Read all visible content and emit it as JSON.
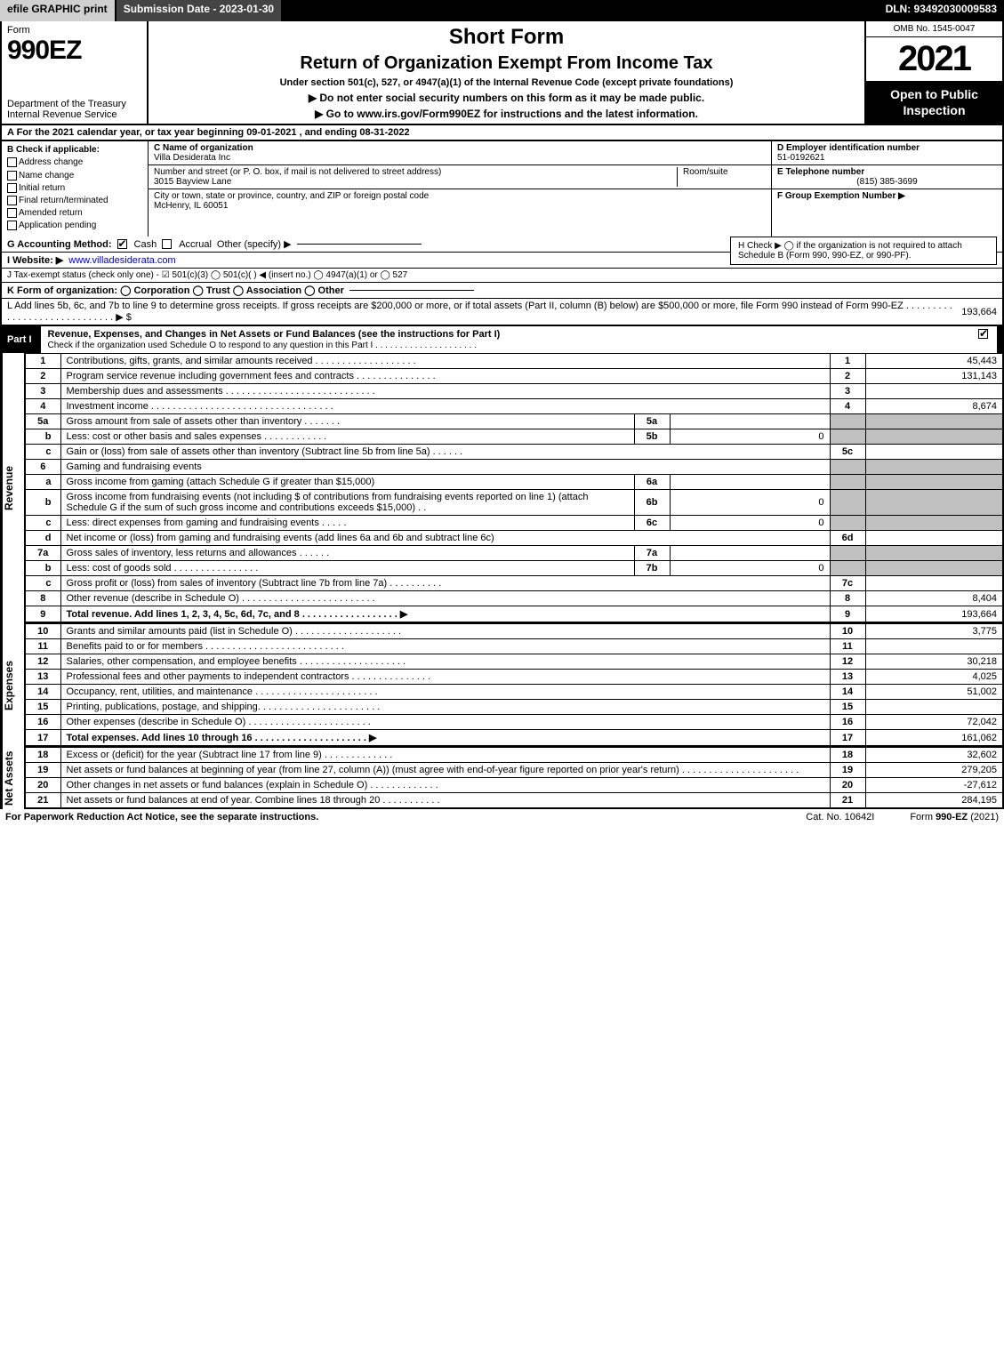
{
  "top_bar": {
    "efile": "efile GRAPHIC print",
    "submission": "Submission Date - 2023-01-30",
    "dln": "DLN: 93492030009583"
  },
  "header": {
    "form_label": "Form",
    "form_no": "990EZ",
    "dept": "Department of the Treasury\nInternal Revenue Service",
    "title1": "Short Form",
    "title2": "Return of Organization Exempt From Income Tax",
    "subtitle": "Under section 501(c), 527, or 4947(a)(1) of the Internal Revenue Code (except private foundations)",
    "warn": "▶ Do not enter social security numbers on this form as it may be made public.",
    "goto": "▶ Go to www.irs.gov/Form990EZ for instructions and the latest information.",
    "omb": "OMB No. 1545-0047",
    "year": "2021",
    "inspection": "Open to Public Inspection"
  },
  "line_a": "A  For the 2021 calendar year, or tax year beginning 09-01-2021 , and ending 08-31-2022",
  "col_b": {
    "label": "B  Check if applicable:",
    "items": [
      "Address change",
      "Name change",
      "Initial return",
      "Final return/terminated",
      "Amended return",
      "Application pending"
    ]
  },
  "col_c": {
    "name_label": "C Name of organization",
    "name": "Villa Desiderata Inc",
    "street_label": "Number and street (or P. O. box, if mail is not delivered to street address)",
    "room_label": "Room/suite",
    "street": "3015 Bayview Lane",
    "city_label": "City or town, state or province, country, and ZIP or foreign postal code",
    "city": "McHenry, IL  60051"
  },
  "col_d": {
    "ein_label": "D Employer identification number",
    "ein": "51-0192621",
    "tel_label": "E Telephone number",
    "tel": "(815) 385-3699",
    "grp_label": "F Group Exemption Number   ▶"
  },
  "g_line": {
    "label": "G Accounting Method:",
    "cash": "Cash",
    "accrual": "Accrual",
    "other": "Other (specify) ▶"
  },
  "h_line": "H  Check ▶  ◯ if the organization is not required to attach Schedule B (Form 990, 990-EZ, or 990-PF).",
  "i_line": {
    "label": "I Website: ▶",
    "url": "www.villadesiderata.com"
  },
  "j_line": "J Tax-exempt status (check only one) -  ☑ 501(c)(3)  ◯ 501(c)(  ) ◀ (insert no.)  ◯ 4947(a)(1) or  ◯ 527",
  "k_line": "K Form of organization:   ◯ Corporation   ◯ Trust   ◯ Association   ◯ Other",
  "l_line": {
    "text": "L Add lines 5b, 6c, and 7b to line 9 to determine gross receipts. If gross receipts are $200,000 or more, or if total assets (Part II, column (B) below) are $500,000 or more, file Form 990 instead of Form 990-EZ .  .  .  .  .  .  .  .  .  .  .  .  .  .  .  .  .  .  .  .  .  .  .  .  .  .  .  .  .  ▶ $",
    "amount": "193,664"
  },
  "part1_hdr": {
    "num": "Part I",
    "title": "Revenue, Expenses, and Changes in Net Assets or Fund Balances (see the instructions for Part I)",
    "sub": "Check if the organization used Schedule O to respond to any question in this Part I .  .  .  .  .  .  .  .  .  .  .  .  .  .  .  .  .  .  .  .  ."
  },
  "revenue_label": "Revenue",
  "expenses_label": "Expenses",
  "netassets_label": "Net Assets",
  "lines": {
    "l1": {
      "n": "1",
      "d": "Contributions, gifts, grants, and similar amounts received .  .  .  .  .  .  .  .  .  .  .  .  .  .  .  .  .  .  .",
      "rn": "1",
      "v": "45,443"
    },
    "l2": {
      "n": "2",
      "d": "Program service revenue including government fees and contracts .  .  .  .  .  .  .  .  .  .  .  .  .  .  .",
      "rn": "2",
      "v": "131,143"
    },
    "l3": {
      "n": "3",
      "d": "Membership dues and assessments .  .  .  .  .  .  .  .  .  .  .  .  .  .  .  .  .  .  .  .  .  .  .  .  .  .  .  .",
      "rn": "3",
      "v": ""
    },
    "l4": {
      "n": "4",
      "d": "Investment income .  .  .  .  .  .  .  .  .  .  .  .  .  .  .  .  .  .  .  .  .  .  .  .  .  .  .  .  .  .  .  .  .  .",
      "rn": "4",
      "v": "8,674"
    },
    "l5a": {
      "n": "5a",
      "d": "Gross amount from sale of assets other than inventory .  .  .  .  .  .  .",
      "mn": "5a",
      "mv": ""
    },
    "l5b": {
      "n": "b",
      "d": "Less: cost or other basis and sales expenses .  .  .  .  .  .  .  .  .  .  .  .",
      "mn": "5b",
      "mv": "0"
    },
    "l5c": {
      "n": "c",
      "d": "Gain or (loss) from sale of assets other than inventory (Subtract line 5b from line 5a) .  .  .  .  .  .",
      "rn": "5c",
      "v": ""
    },
    "l6": {
      "n": "6",
      "d": "Gaming and fundraising events"
    },
    "l6a": {
      "n": "a",
      "d": "Gross income from gaming (attach Schedule G if greater than $15,000)",
      "mn": "6a",
      "mv": ""
    },
    "l6b": {
      "n": "b",
      "d": "Gross income from fundraising events (not including $                    of contributions from fundraising events reported on line 1) (attach Schedule G if the sum of such gross income and contributions exceeds $15,000)    .   .",
      "mn": "6b",
      "mv": "0"
    },
    "l6c": {
      "n": "c",
      "d": "Less: direct expenses from gaming and fundraising events    .  .  .  .  .",
      "mn": "6c",
      "mv": "0"
    },
    "l6d": {
      "n": "d",
      "d": "Net income or (loss) from gaming and fundraising events (add lines 6a and 6b and subtract line 6c)",
      "rn": "6d",
      "v": ""
    },
    "l7a": {
      "n": "7a",
      "d": "Gross sales of inventory, less returns and allowances .  .  .  .  .  .",
      "mn": "7a",
      "mv": ""
    },
    "l7b": {
      "n": "b",
      "d": "Less: cost of goods sold      .  .  .  .  .  .  .  .  .  .  .  .  .  .  .  .",
      "mn": "7b",
      "mv": "0"
    },
    "l7c": {
      "n": "c",
      "d": "Gross profit or (loss) from sales of inventory (Subtract line 7b from line 7a) .  .  .  .  .  .  .  .  .  .",
      "rn": "7c",
      "v": ""
    },
    "l8": {
      "n": "8",
      "d": "Other revenue (describe in Schedule O) .  .  .  .  .  .  .  .  .  .  .  .  .  .  .  .  .  .  .  .  .  .  .  .  .",
      "rn": "8",
      "v": "8,404"
    },
    "l9": {
      "n": "9",
      "d": "Total revenue. Add lines 1, 2, 3, 4, 5c, 6d, 7c, and 8  .  .  .  .  .  .  .  .  .  .  .  .  .  .  .  .  .  .  ▶",
      "rn": "9",
      "v": "193,664"
    },
    "l10": {
      "n": "10",
      "d": "Grants and similar amounts paid (list in Schedule O) .  .  .  .  .  .  .  .  .  .  .  .  .  .  .  .  .  .  .  .",
      "rn": "10",
      "v": "3,775"
    },
    "l11": {
      "n": "11",
      "d": "Benefits paid to or for members    .  .  .  .  .  .  .  .  .  .  .  .  .  .  .  .  .  .  .  .  .  .  .  .  .  .",
      "rn": "11",
      "v": ""
    },
    "l12": {
      "n": "12",
      "d": "Salaries, other compensation, and employee benefits .  .  .  .  .  .  .  .  .  .  .  .  .  .  .  .  .  .  .  .",
      "rn": "12",
      "v": "30,218"
    },
    "l13": {
      "n": "13",
      "d": "Professional fees and other payments to independent contractors .  .  .  .  .  .  .  .  .  .  .  .  .  .  .",
      "rn": "13",
      "v": "4,025"
    },
    "l14": {
      "n": "14",
      "d": "Occupancy, rent, utilities, and maintenance .  .  .  .  .  .  .  .  .  .  .  .  .  .  .  .  .  .  .  .  .  .  .",
      "rn": "14",
      "v": "51,002"
    },
    "l15": {
      "n": "15",
      "d": "Printing, publications, postage, and shipping. .  .  .  .  .  .  .  .  .  .  .  .  .  .  .  .  .  .  .  .  .  .",
      "rn": "15",
      "v": ""
    },
    "l16": {
      "n": "16",
      "d": "Other expenses (describe in Schedule O)    .  .  .  .  .  .  .  .  .  .  .  .  .  .  .  .  .  .  .  .  .  .  .",
      "rn": "16",
      "v": "72,042"
    },
    "l17": {
      "n": "17",
      "d": "Total expenses. Add lines 10 through 16     .  .  .  .  .  .  .  .  .  .  .  .  .  .  .  .  .  .  .  .  .  ▶",
      "rn": "17",
      "v": "161,062"
    },
    "l18": {
      "n": "18",
      "d": "Excess or (deficit) for the year (Subtract line 17 from line 9)      .  .  .  .  .  .  .  .  .  .  .  .  .",
      "rn": "18",
      "v": "32,602"
    },
    "l19": {
      "n": "19",
      "d": "Net assets or fund balances at beginning of year (from line 27, column (A)) (must agree with end-of-year figure reported on prior year's return) .  .  .  .  .  .  .  .  .  .  .  .  .  .  .  .  .  .  .  .  .  .",
      "rn": "19",
      "v": "279,205"
    },
    "l20": {
      "n": "20",
      "d": "Other changes in net assets or fund balances (explain in Schedule O) .  .  .  .  .  .  .  .  .  .  .  .  .",
      "rn": "20",
      "v": "-27,612"
    },
    "l21": {
      "n": "21",
      "d": "Net assets or fund balances at end of year. Combine lines 18 through 20 .  .  .  .  .  .  .  .  .  .  .",
      "rn": "21",
      "v": "284,195"
    }
  },
  "footer": {
    "left": "For Paperwork Reduction Act Notice, see the separate instructions.",
    "mid": "Cat. No. 10642I",
    "right": "Form 990-EZ (2021)"
  }
}
